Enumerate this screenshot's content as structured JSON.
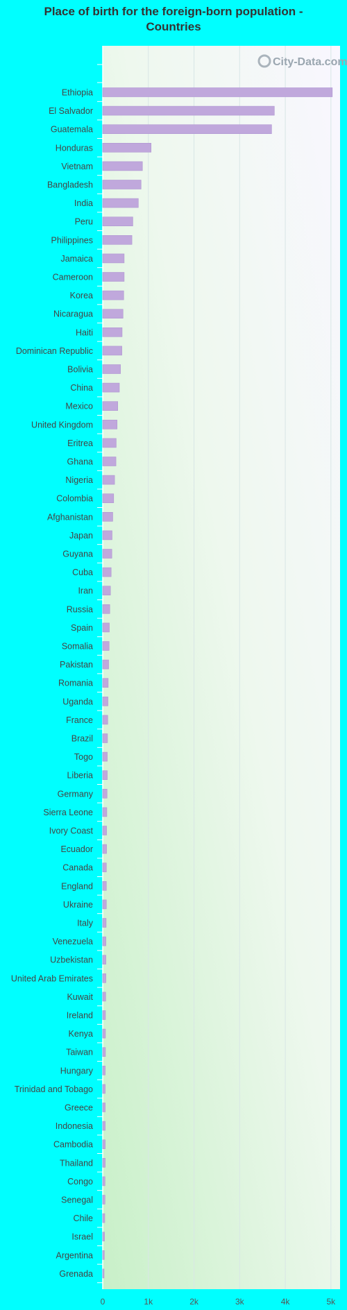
{
  "watermark": "City-Data.com",
  "colors": {
    "background": "#00ffff",
    "bar": "#c0a8dc",
    "bar_edge": "#b096d2",
    "grid": "#d8e6e6"
  },
  "chart_data": {
    "type": "bar",
    "orientation": "horizontal",
    "title": "Place of birth for the foreign-born population -\nCountries",
    "xlabel": "",
    "ylabel": "",
    "xlim": [
      0,
      5200
    ],
    "xticks": [
      0,
      1000,
      2000,
      3000,
      4000,
      5000
    ],
    "xtick_labels": [
      "0",
      "1k",
      "2k",
      "3k",
      "4k",
      "5k"
    ],
    "grid": true,
    "categories": [
      "Ethiopia",
      "El Salvador",
      "Guatemala",
      "Honduras",
      "Vietnam",
      "Bangladesh",
      "India",
      "Peru",
      "Philippines",
      "Jamaica",
      "Cameroon",
      "Korea",
      "Nicaragua",
      "Haiti",
      "Dominican Republic",
      "Bolivia",
      "China",
      "Mexico",
      "United Kingdom",
      "Eritrea",
      "Ghana",
      "Nigeria",
      "Colombia",
      "Afghanistan",
      "Japan",
      "Guyana",
      "Cuba",
      "Iran",
      "Russia",
      "Spain",
      "Somalia",
      "Pakistan",
      "Romania",
      "Uganda",
      "France",
      "Brazil",
      "Togo",
      "Liberia",
      "Germany",
      "Sierra Leone",
      "Ivory Coast",
      "Ecuador",
      "Canada",
      "England",
      "Ukraine",
      "Italy",
      "Venezuela",
      "Uzbekistan",
      "United Arab Emirates",
      "Kuwait",
      "Ireland",
      "Kenya",
      "Taiwan",
      "Hungary",
      "Trinidad and Tobago",
      "Greece",
      "Indonesia",
      "Cambodia",
      "Thailand",
      "Congo",
      "Senegal",
      "Chile",
      "Israel",
      "Argentina",
      "Grenada"
    ],
    "values": [
      5030,
      3760,
      3700,
      1060,
      870,
      840,
      780,
      660,
      640,
      470,
      470,
      460,
      445,
      425,
      420,
      390,
      365,
      330,
      315,
      295,
      290,
      260,
      240,
      220,
      205,
      200,
      185,
      170,
      155,
      145,
      140,
      130,
      120,
      115,
      110,
      105,
      100,
      100,
      95,
      90,
      85,
      85,
      80,
      80,
      80,
      75,
      70,
      70,
      70,
      65,
      60,
      60,
      60,
      55,
      55,
      55,
      55,
      55,
      55,
      50,
      50,
      45,
      40,
      35,
      30
    ]
  }
}
